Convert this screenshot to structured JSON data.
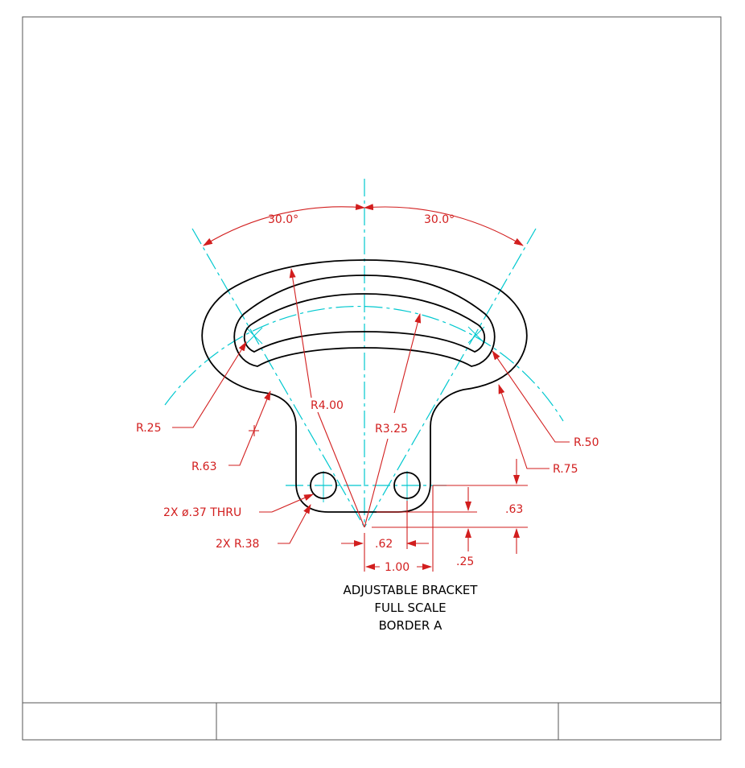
{
  "colors": {
    "geometry": "#000000",
    "centerline": "#00c8cf",
    "dimension": "#d21e1e",
    "background": "#ffffff"
  },
  "dims": {
    "ang_left": "30.0°",
    "ang_right": "30.0°",
    "r25": "R.25",
    "r63": "R.63",
    "r400": "R4.00",
    "r325": "R3.25",
    "r50": "R.50",
    "r75": "R.75",
    "hole": "2X ø.37 THRU",
    "r38": "2X R.38",
    "d62": ".62",
    "d100": "1.00",
    "d63": ".63",
    "d25": ".25"
  },
  "title": {
    "line1": "ADJUSTABLE BRACKET",
    "line2": "FULL SCALE",
    "line3": "BORDER A"
  },
  "title_block": {
    "cells": [
      "",
      "",
      ""
    ]
  }
}
